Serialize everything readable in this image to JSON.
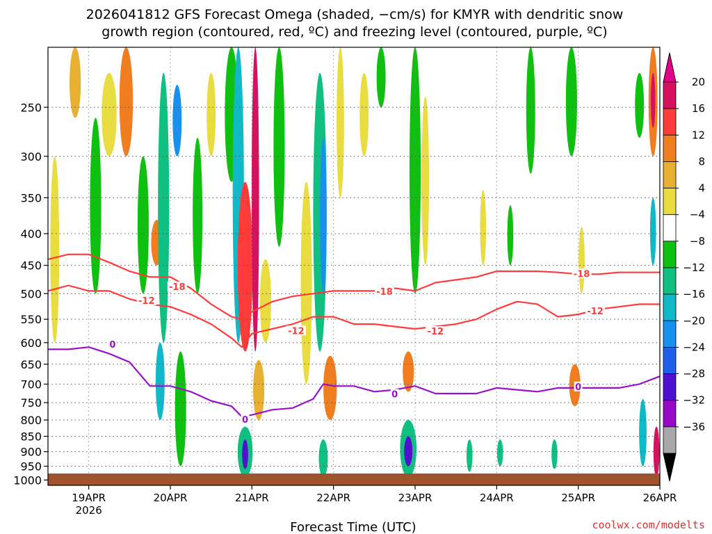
{
  "chart_data": {
    "type": "heatmap",
    "title_line1": "2026041812 GFS Forecast Omega (shaded, −cm/s) for KMYR with dendritic snow",
    "title_line2": "growth region (contoured, red, ºC) and freezing level (contoured, purple, ºC)",
    "xlabel": "Forecast Time (UTC)",
    "credit": "coolwx.com/modelts",
    "x_ticks": [
      {
        "label": "19APR",
        "sub": "2026",
        "hour": 18
      },
      {
        "label": "20APR",
        "hour": 42
      },
      {
        "label": "21APR",
        "hour": 66
      },
      {
        "label": "22APR",
        "hour": 90
      },
      {
        "label": "23APR",
        "hour": 114
      },
      {
        "label": "24APR",
        "hour": 138
      },
      {
        "label": "25APR",
        "hour": 162
      },
      {
        "label": "26APR",
        "hour": 186
      }
    ],
    "x_range_hours": [
      6,
      186
    ],
    "y_ticks": [
      "250",
      "300",
      "350",
      "400",
      "450",
      "500",
      "550",
      "600",
      "650",
      "700",
      "750",
      "800",
      "850",
      "900",
      "950",
      "1000"
    ],
    "y_range_hpa": [
      200,
      1020
    ],
    "y_scale": "log",
    "grid": true,
    "colorbar": {
      "ticks": [
        "20",
        "16",
        "12",
        "8",
        "4",
        "−4",
        "−8",
        "−12",
        "−16",
        "−20",
        "−24",
        "−28",
        "−32",
        "−36"
      ],
      "colors": [
        "#d81060",
        "#ff3a3a",
        "#f07e20",
        "#e8b030",
        "#e8dc40",
        "#ffffff",
        "#10c010",
        "#10c080",
        "#10b8c8",
        "#1890ee",
        "#2060e8",
        "#5010d0",
        "#9808c8",
        "#a8a8a8"
      ],
      "over_color": "#e8008c",
      "under_color": "#000000"
    },
    "contours": {
      "freezing_level": {
        "color": "#9a10c8",
        "label": "0",
        "x_hours": [
          6,
          12,
          18,
          24,
          30,
          36,
          42,
          48,
          54,
          60,
          63,
          66,
          72,
          78,
          84,
          87,
          90,
          96,
          102,
          108,
          114,
          120,
          126,
          132,
          138,
          144,
          150,
          156,
          162,
          168,
          174,
          180,
          186
        ],
        "pressure_hpa": [
          615,
          615,
          610,
          625,
          645,
          705,
          705,
          720,
          745,
          760,
          790,
          785,
          770,
          765,
          740,
          700,
          705,
          705,
          720,
          715,
          705,
          725,
          725,
          725,
          710,
          715,
          720,
          710,
          710,
          710,
          710,
          700,
          680
        ],
        "labels": [
          {
            "text": "0",
            "hour": 25,
            "p": 605
          },
          {
            "text": "0",
            "hour": 64,
            "p": 800
          },
          {
            "text": "0",
            "hour": 108,
            "p": 728
          },
          {
            "text": "0",
            "hour": 162,
            "p": 708
          }
        ]
      },
      "dendritic_minus12": {
        "color": "#ff3a3a",
        "label": "-12",
        "x_hours": [
          6,
          12,
          18,
          24,
          30,
          36,
          42,
          48,
          54,
          60,
          63,
          66,
          72,
          78,
          84,
          90,
          96,
          102,
          108,
          114,
          120,
          126,
          132,
          138,
          144,
          150,
          156,
          162,
          168,
          174,
          180,
          186
        ],
        "pressure_hpa": [
          495,
          485,
          495,
          495,
          510,
          520,
          525,
          540,
          560,
          590,
          610,
          580,
          570,
          560,
          545,
          545,
          560,
          560,
          565,
          570,
          565,
          560,
          550,
          530,
          515,
          520,
          545,
          540,
          530,
          525,
          520,
          520
        ],
        "labels": [
          {
            "text": "-12",
            "hour": 35,
            "p": 514
          },
          {
            "text": "-12",
            "hour": 79,
            "p": 575
          },
          {
            "text": "-12",
            "hour": 120,
            "p": 576
          },
          {
            "text": "-12",
            "hour": 167,
            "p": 534
          }
        ]
      },
      "dendritic_minus18": {
        "color": "#ff3a3a",
        "label": "-18",
        "x_hours": [
          6,
          12,
          18,
          24,
          30,
          36,
          42,
          48,
          54,
          60,
          63,
          66,
          72,
          78,
          84,
          90,
          96,
          102,
          108,
          114,
          120,
          126,
          132,
          138,
          144,
          150,
          156,
          162,
          168,
          174,
          180,
          186
        ],
        "pressure_hpa": [
          440,
          432,
          432,
          445,
          460,
          470,
          470,
          490,
          520,
          545,
          550,
          535,
          515,
          505,
          500,
          495,
          495,
          495,
          490,
          495,
          480,
          475,
          470,
          460,
          460,
          460,
          462,
          465,
          465,
          462,
          462,
          462
        ],
        "labels": [
          {
            "text": "-18",
            "hour": 44,
            "p": 488
          },
          {
            "text": "-18",
            "hour": 105,
            "p": 497
          },
          {
            "text": "-18",
            "hour": 163,
            "p": 465
          }
        ]
      }
    },
    "omega_blobs": [
      {
        "hour": 8,
        "p1": 300,
        "p2": 600,
        "w": 1.2,
        "color": "#e8dc40"
      },
      {
        "hour": 14,
        "p1": 200,
        "p2": 260,
        "w": 1.5,
        "color": "#e8b030"
      },
      {
        "hour": 20,
        "p1": 260,
        "p2": 500,
        "w": 1.5,
        "color": "#10c010"
      },
      {
        "hour": 24,
        "p1": 220,
        "p2": 300,
        "w": 2.0,
        "color": "#e8dc40"
      },
      {
        "hour": 29,
        "p1": 200,
        "p2": 300,
        "w": 1.8,
        "color": "#f07e20"
      },
      {
        "hour": 34,
        "p1": 300,
        "p2": 500,
        "w": 1.5,
        "color": "#10c010"
      },
      {
        "hour": 38,
        "p1": 380,
        "p2": 450,
        "w": 1.5,
        "color": "#f07e20"
      },
      {
        "hour": 39,
        "p1": 600,
        "p2": 800,
        "w": 1.2,
        "color": "#10b8c8"
      },
      {
        "hour": 40,
        "p1": 220,
        "p2": 600,
        "w": 1.5,
        "color": "#10c080"
      },
      {
        "hour": 44,
        "p1": 230,
        "p2": 300,
        "w": 1.2,
        "color": "#1890ee"
      },
      {
        "hour": 45,
        "p1": 620,
        "p2": 950,
        "w": 1.5,
        "color": "#10c010"
      },
      {
        "hour": 50,
        "p1": 280,
        "p2": 500,
        "w": 1.3,
        "color": "#10c010"
      },
      {
        "hour": 54,
        "p1": 220,
        "p2": 300,
        "w": 1.2,
        "color": "#e8dc40"
      },
      {
        "hour": 60,
        "p1": 200,
        "p2": 330,
        "w": 1.8,
        "color": "#10c010"
      },
      {
        "hour": 62,
        "p1": 200,
        "p2": 600,
        "w": 1.5,
        "color": "#10b8c8"
      },
      {
        "hour": 64,
        "p1": 330,
        "p2": 620,
        "w": 2.0,
        "color": "#ff3a3a"
      },
      {
        "hour": 64,
        "p1": 820,
        "p2": 990,
        "w": 2.0,
        "color": "#10c080"
      },
      {
        "hour": 64,
        "p1": 860,
        "p2": 960,
        "w": 0.8,
        "color": "#5010d0"
      },
      {
        "hour": 67,
        "p1": 200,
        "p2": 620,
        "w": 1.0,
        "color": "#d81060"
      },
      {
        "hour": 68,
        "p1": 640,
        "p2": 800,
        "w": 1.5,
        "color": "#e8b030"
      },
      {
        "hour": 70,
        "p1": 440,
        "p2": 600,
        "w": 1.5,
        "color": "#e8dc40"
      },
      {
        "hour": 74,
        "p1": 200,
        "p2": 420,
        "w": 1.5,
        "color": "#10c010"
      },
      {
        "hour": 82,
        "p1": 330,
        "p2": 700,
        "w": 1.5,
        "color": "#e8dc40"
      },
      {
        "hour": 86,
        "p1": 220,
        "p2": 620,
        "w": 1.8,
        "color": "#10c080"
      },
      {
        "hour": 87,
        "p1": 280,
        "p2": 500,
        "w": 0.9,
        "color": "#1890ee"
      },
      {
        "hour": 89,
        "p1": 630,
        "p2": 800,
        "w": 1.8,
        "color": "#f07e20"
      },
      {
        "hour": 92,
        "p1": 200,
        "p2": 350,
        "w": 1.0,
        "color": "#e8dc40"
      },
      {
        "hour": 87,
        "p1": 860,
        "p2": 990,
        "w": 1.2,
        "color": "#10c080"
      },
      {
        "hour": 99,
        "p1": 220,
        "p2": 300,
        "w": 1.2,
        "color": "#e8dc40"
      },
      {
        "hour": 104,
        "p1": 200,
        "p2": 250,
        "w": 1.2,
        "color": "#10c010"
      },
      {
        "hour": 112,
        "p1": 620,
        "p2": 720,
        "w": 1.5,
        "color": "#f07e20"
      },
      {
        "hour": 112,
        "p1": 800,
        "p2": 990,
        "w": 2.2,
        "color": "#10c080"
      },
      {
        "hour": 112,
        "p1": 850,
        "p2": 950,
        "w": 1.1,
        "color": "#5010d0"
      },
      {
        "hour": 114,
        "p1": 200,
        "p2": 500,
        "w": 1.5,
        "color": "#10c010"
      },
      {
        "hour": 117,
        "p1": 240,
        "p2": 450,
        "w": 1.0,
        "color": "#e8dc40"
      },
      {
        "hour": 130,
        "p1": 860,
        "p2": 970,
        "w": 0.8,
        "color": "#10c080"
      },
      {
        "hour": 134,
        "p1": 340,
        "p2": 450,
        "w": 0.8,
        "color": "#e8dc40"
      },
      {
        "hour": 139,
        "p1": 860,
        "p2": 950,
        "w": 0.8,
        "color": "#10c080"
      },
      {
        "hour": 142,
        "p1": 360,
        "p2": 450,
        "w": 0.8,
        "color": "#10c010"
      },
      {
        "hour": 148,
        "p1": 200,
        "p2": 320,
        "w": 1.2,
        "color": "#10c010"
      },
      {
        "hour": 155,
        "p1": 860,
        "p2": 960,
        "w": 0.8,
        "color": "#10c080"
      },
      {
        "hour": 161,
        "p1": 650,
        "p2": 760,
        "w": 1.5,
        "color": "#f07e20"
      },
      {
        "hour": 160,
        "p1": 200,
        "p2": 300,
        "w": 1.5,
        "color": "#10c010"
      },
      {
        "hour": 163,
        "p1": 390,
        "p2": 500,
        "w": 0.8,
        "color": "#e8dc40"
      },
      {
        "hour": 180,
        "p1": 220,
        "p2": 280,
        "w": 1.2,
        "color": "#10c010"
      },
      {
        "hour": 181,
        "p1": 740,
        "p2": 950,
        "w": 1.0,
        "color": "#10b8c8"
      },
      {
        "hour": 184,
        "p1": 200,
        "p2": 300,
        "w": 1.2,
        "color": "#f07e20"
      },
      {
        "hour": 184,
        "p1": 220,
        "p2": 270,
        "w": 0.6,
        "color": "#d81060"
      },
      {
        "hour": 184,
        "p1": 350,
        "p2": 450,
        "w": 0.8,
        "color": "#10b8c8"
      },
      {
        "hour": 185,
        "p1": 820,
        "p2": 990,
        "w": 0.8,
        "color": "#d81060"
      }
    ]
  }
}
